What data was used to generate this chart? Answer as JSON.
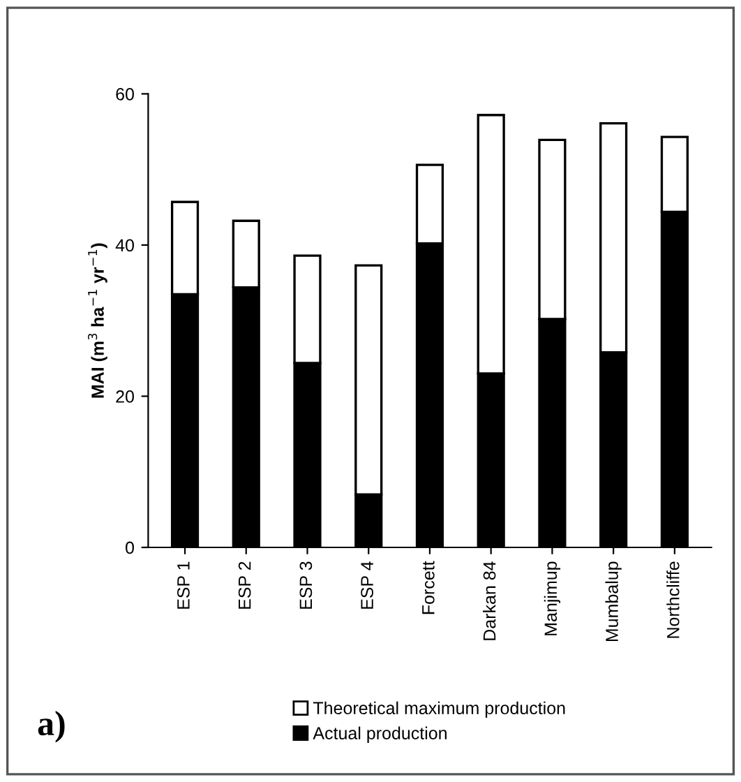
{
  "chart_data": {
    "type": "bar",
    "stacked": true,
    "ylabel": "MAI (m$^{3}$ ha$^{−1}$ yr$^{−1}$)",
    "categories": [
      "ESP 1",
      "ESP 2",
      "ESP 3",
      "ESP 4",
      "Forcett",
      "Darkan 84",
      "Manjimup",
      "Mumbalup",
      "Northcliffe"
    ],
    "series": [
      {
        "name": "Actual production",
        "color": "#000000",
        "values": [
          33.5,
          34.4,
          24.4,
          7.0,
          40.2,
          23.0,
          30.2,
          25.8,
          44.4
        ]
      },
      {
        "name": "Theoretical maximum production",
        "color": "#ffffff",
        "values": [
          12.2,
          8.8,
          14.2,
          30.3,
          10.4,
          34.2,
          23.7,
          30.3,
          9.9
        ]
      }
    ],
    "ylim": [
      0,
      60
    ],
    "yticks": [
      0,
      20,
      40,
      60
    ],
    "grid": false,
    "legend": "bottom",
    "annotations": [
      "a)"
    ]
  }
}
